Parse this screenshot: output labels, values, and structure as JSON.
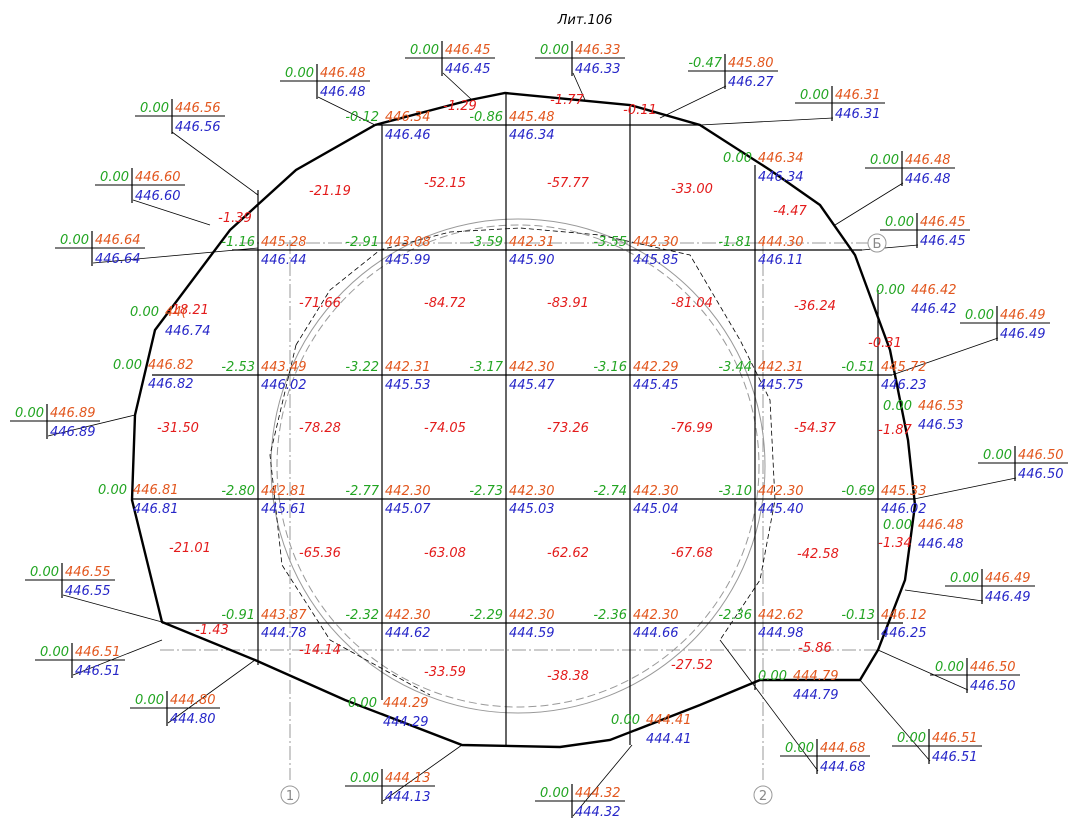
{
  "title": "Лит.106",
  "nodes": [
    {
      "work": "-0.12",
      "design": "446.34",
      "natural": "446.46"
    },
    {
      "work": "-0.86",
      "design": "445.48",
      "natural": "446.34"
    },
    {
      "work": "-1.16",
      "design": "445.28",
      "natural": "446.44"
    },
    {
      "work": "-2.91",
      "design": "443.08",
      "natural": "445.99"
    },
    {
      "work": "-3.59",
      "design": "442.31",
      "natural": "445.90"
    },
    {
      "work": "-3.55",
      "design": "442.30",
      "natural": "445.85"
    },
    {
      "work": "-1.81",
      "design": "444.30",
      "natural": "446.11"
    },
    {
      "work": "-2.53",
      "design": "443.49",
      "natural": "446.02"
    },
    {
      "work": "-3.22",
      "design": "442.31",
      "natural": "445.53"
    },
    {
      "work": "-3.17",
      "design": "442.30",
      "natural": "445.47"
    },
    {
      "work": "-3.16",
      "design": "442.29",
      "natural": "445.45"
    },
    {
      "work": "-3.44",
      "design": "442.31",
      "natural": "445.75"
    },
    {
      "work": "-0.51",
      "design": "445.72",
      "natural": "446.23"
    },
    {
      "work": "-2.80",
      "design": "442.81",
      "natural": "445.61"
    },
    {
      "work": "-2.77",
      "design": "442.30",
      "natural": "445.07"
    },
    {
      "work": "-2.73",
      "design": "442.30",
      "natural": "445.03"
    },
    {
      "work": "-2.74",
      "design": "442.30",
      "natural": "445.04"
    },
    {
      "work": "-3.10",
      "design": "442.30",
      "natural": "445.40"
    },
    {
      "work": "-0.69",
      "design": "445.33",
      "natural": "446.02"
    },
    {
      "work": "-0.91",
      "design": "443.87",
      "natural": "444.78"
    },
    {
      "work": "-2.32",
      "design": "442.30",
      "natural": "444.62"
    },
    {
      "work": "-2.29",
      "design": "442.30",
      "natural": "444.59"
    },
    {
      "work": "-2.36",
      "design": "442.30",
      "natural": "444.66"
    },
    {
      "work": "-2.36",
      "design": "442.62",
      "natural": "444.98"
    },
    {
      "work": "-0.13",
      "design": "446.12",
      "natural": "446.25"
    }
  ],
  "volumes": [
    "-1.29",
    "-1.77",
    "-0.11",
    "-21.19",
    "-52.15",
    "-57.77",
    "-33.00",
    "-4.47",
    "-1.39",
    "-18.21",
    "-71.66",
    "-84.72",
    "-83.91",
    "-81.04",
    "-36.24",
    "-0.31",
    "-31.50",
    "-78.28",
    "-74.05",
    "-73.26",
    "-76.99",
    "-54.37",
    "-1.87",
    "-21.01",
    "-65.36",
    "-63.08",
    "-62.62",
    "-67.68",
    "-42.58",
    "-1.34",
    "-1.43",
    "-14.14",
    "-33.59",
    "-38.38",
    "-27.52",
    "-5.86"
  ],
  "points": [
    {
      "work": "0.00",
      "design": "446.48",
      "natural": "446.48"
    },
    {
      "work": "0.00",
      "design": "446.56",
      "natural": "446.56"
    },
    {
      "work": "0.00",
      "design": "446.60",
      "natural": "446.60"
    },
    {
      "work": "0.00",
      "design": "446.64",
      "natural": "446.64"
    },
    {
      "work": "0.00",
      "design": "446.45",
      "natural": "446.45"
    },
    {
      "work": "0.00",
      "design": "446.33",
      "natural": "446.33"
    },
    {
      "work": "-0.47",
      "design": "445.80",
      "natural": "446.27"
    },
    {
      "work": "0.00",
      "design": "446.31",
      "natural": "446.31"
    },
    {
      "work": "0.00",
      "design": "446.48",
      "natural": "446.48"
    },
    {
      "work": "0.00",
      "design": "446.45",
      "natural": "446.45"
    },
    {
      "work": "0.00",
      "design": "446.49",
      "natural": "446.49"
    },
    {
      "work": "0.00",
      "design": "446.89",
      "natural": "446.89"
    },
    {
      "work": "0.00",
      "design": "446.50",
      "natural": "446.50"
    },
    {
      "work": "0.00",
      "design": "446.55",
      "natural": "446.55"
    },
    {
      "work": "0.00",
      "design": "446.51",
      "natural": "446.51"
    },
    {
      "work": "0.00",
      "design": "444.80",
      "natural": "444.80"
    },
    {
      "work": "0.00",
      "design": "444.13",
      "natural": "444.13"
    },
    {
      "work": "0.00",
      "design": "444.32",
      "natural": "444.32"
    },
    {
      "work": "0.00",
      "design": "444.68",
      "natural": "444.68"
    },
    {
      "work": "0.00",
      "design": "446.51",
      "natural": "446.51"
    },
    {
      "work": "0.00",
      "design": "446.50",
      "natural": "446.50"
    },
    {
      "work": "0.00",
      "design": "446.49",
      "natural": "446.49"
    },
    {
      "work": "0.00",
      "design": "446.34",
      "natural": "446.34"
    },
    {
      "work": "0.00",
      "design": "446.42",
      "natural": "446.42"
    },
    {
      "work": "0.00",
      "design": "446.53",
      "natural": "446.53"
    },
    {
      "work": "0.00",
      "design": "446.48",
      "natural": "446.48"
    },
    {
      "work": "0.00",
      "design": "444.79",
      "natural": "444.79"
    },
    {
      "work": "0.00",
      "design": "444.29",
      "natural": "444.29"
    },
    {
      "work": "0.00",
      "design": "444.41",
      "natural": "444.41"
    },
    {
      "work": "0.00",
      "design": "44(",
      "natural": "446.74"
    },
    {
      "work": "0.00",
      "design": "446.82",
      "natural": "446.82"
    },
    {
      "work": "0.00",
      "design": "446.81",
      "natural": "446.81"
    }
  ],
  "axes": [
    "1",
    "2",
    "Б"
  ]
}
